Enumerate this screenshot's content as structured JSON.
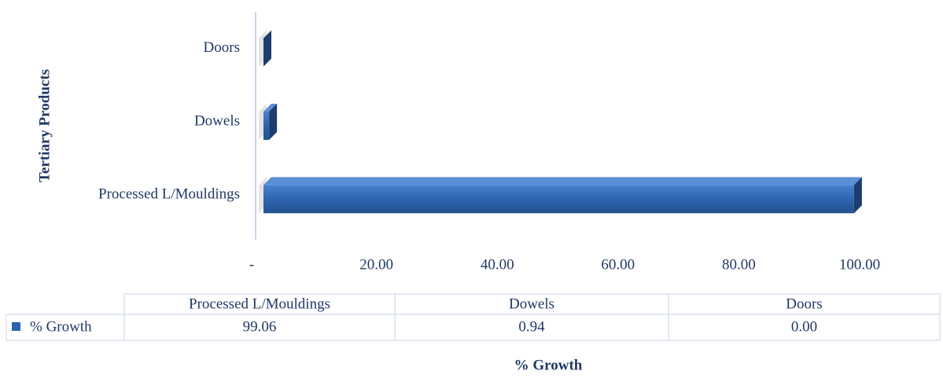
{
  "chart_data": {
    "type": "bar3d_horizontal",
    "y_axis_label": "Tertiary Products",
    "x_axis_label": "% Growth",
    "categories": [
      "Processed L/Mouldings",
      "Dowels",
      "Doors"
    ],
    "series": [
      {
        "name": "% Growth",
        "color": "#2e64b0",
        "values": [
          99.06,
          0.94,
          0
        ],
        "value_labels": [
          "99.06",
          "0.94",
          "0.00"
        ]
      }
    ],
    "xlim": [
      0,
      100
    ],
    "xticks": [
      {
        "value": 0,
        "label": "-"
      },
      {
        "value": 20,
        "label": "20.00"
      },
      {
        "value": 40,
        "label": "40.00"
      },
      {
        "value": 60,
        "label": "60.00"
      },
      {
        "value": 80,
        "label": "80.00"
      },
      {
        "value": 100,
        "label": "100.00"
      }
    ],
    "grid": false
  }
}
